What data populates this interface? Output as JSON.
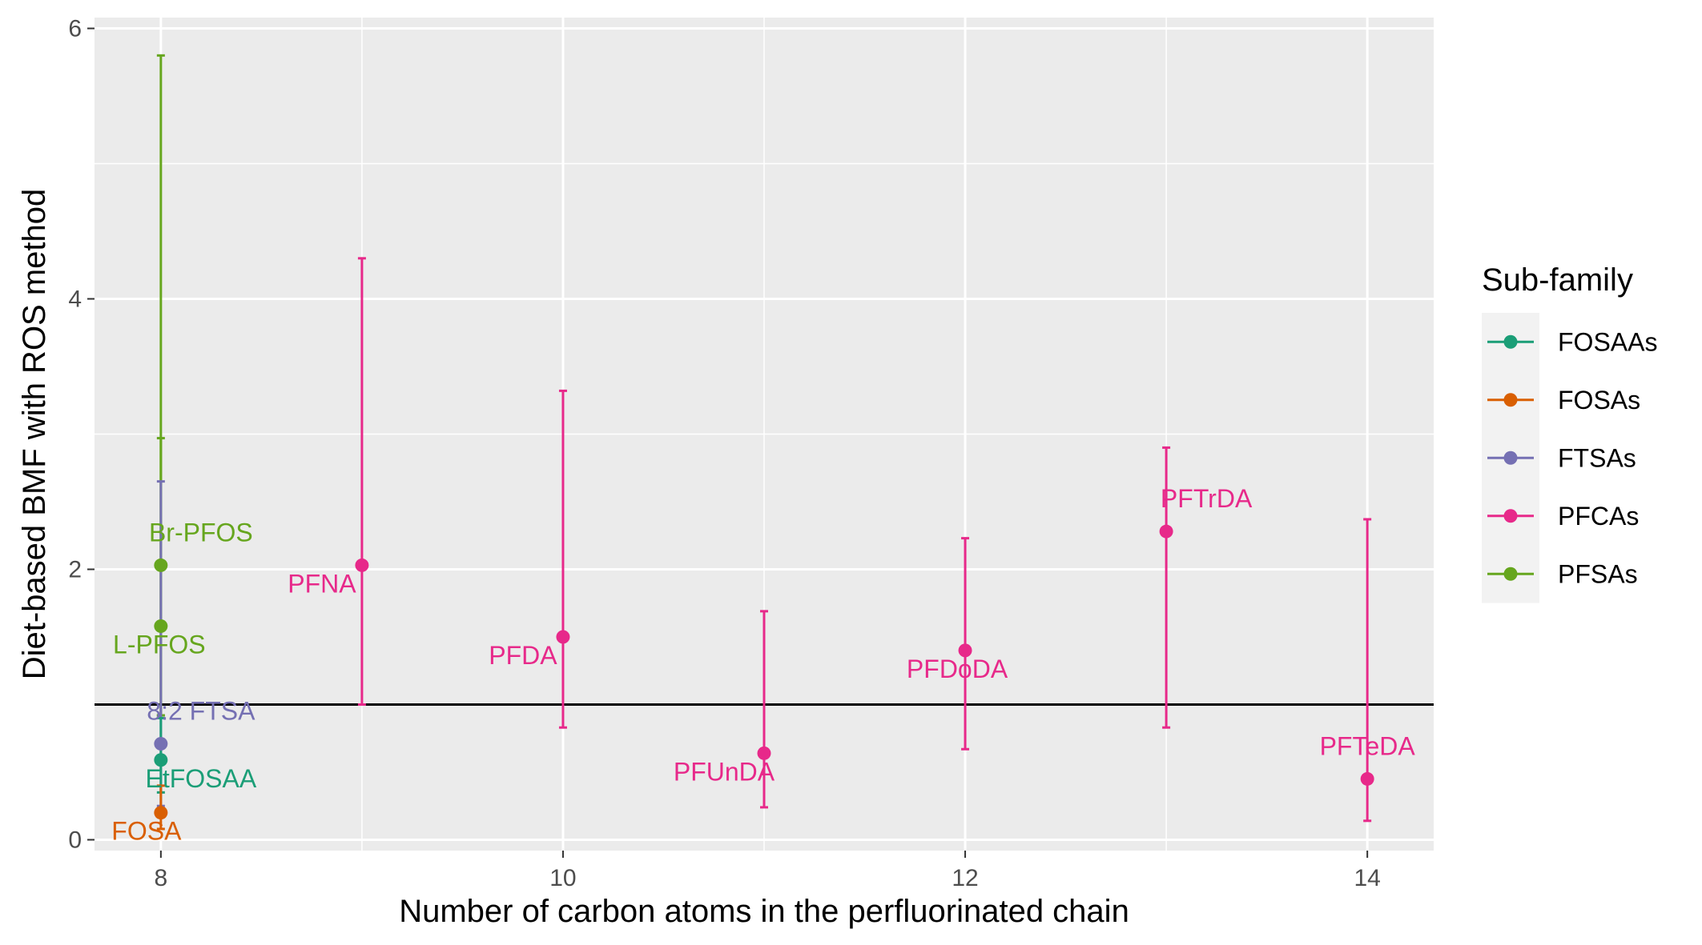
{
  "chart_data": {
    "type": "scatter",
    "xlabel": "Number of carbon atoms in the perfluorinated chain",
    "ylabel": "Diet-based BMF with ROS method",
    "xlim": [
      7.67,
      14.33
    ],
    "ylim": [
      -0.08,
      6.08
    ],
    "x_ticks": [
      8,
      10,
      12,
      14
    ],
    "y_ticks": [
      0,
      2,
      4,
      6
    ],
    "grid": true,
    "reference_line": 1,
    "legend": {
      "title": "Sub-family",
      "position": "right",
      "entries": [
        {
          "name": "FOSAAs",
          "color": "#1b9e77"
        },
        {
          "name": "FOSAs",
          "color": "#d95f02"
        },
        {
          "name": "FTSAs",
          "color": "#7570b3"
        },
        {
          "name": "PFCAs",
          "color": "#e7298a"
        },
        {
          "name": "PFSAs",
          "color": "#66a61e"
        }
      ]
    },
    "points": [
      {
        "label": "Br-PFOS",
        "family": "PFSAs",
        "x": 8,
        "y": 2.03,
        "lo": 0.92,
        "hi": 5.8
      },
      {
        "label": "L-PFOS",
        "family": "PFSAs",
        "x": 8,
        "y": 1.58,
        "lo": 0.92,
        "hi": 2.97
      },
      {
        "label": "8:2 FTSA",
        "family": "FTSAs",
        "x": 8,
        "y": 0.71,
        "lo": 0.25,
        "hi": 2.65
      },
      {
        "label": "EtFOSAA",
        "family": "FOSAAs",
        "x": 8,
        "y": 0.59,
        "lo": 0.35,
        "hi": 0.9
      },
      {
        "label": "FOSA",
        "family": "FOSAs",
        "x": 8,
        "y": 0.2,
        "lo": 0.08,
        "hi": 0.4
      },
      {
        "label": "PFNA",
        "family": "PFCAs",
        "x": 9,
        "y": 2.03,
        "lo": 1.0,
        "hi": 4.3
      },
      {
        "label": "PFDA",
        "family": "PFCAs",
        "x": 10,
        "y": 1.5,
        "lo": 0.83,
        "hi": 3.32
      },
      {
        "label": "PFUnDA",
        "family": "PFCAs",
        "x": 11,
        "y": 0.64,
        "lo": 0.24,
        "hi": 1.69
      },
      {
        "label": "PFDoDA",
        "family": "PFCAs",
        "x": 12,
        "y": 1.4,
        "lo": 0.67,
        "hi": 2.23
      },
      {
        "label": "PFTrDA",
        "family": "PFCAs",
        "x": 13,
        "y": 2.28,
        "lo": 0.83,
        "hi": 2.9
      },
      {
        "label": "PFTeDA",
        "family": "PFCAs",
        "x": 14,
        "y": 0.45,
        "lo": 0.14,
        "hi": 2.37
      }
    ]
  }
}
